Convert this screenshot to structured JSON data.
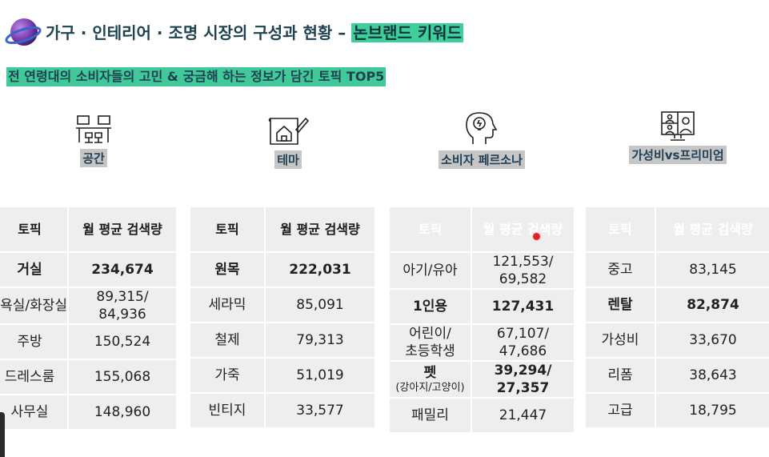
{
  "header": {
    "title_main": "가구 · 인테리어 · 조명 시장의 구성과 현황 – ",
    "title_highlight": "논브랜드 키워드",
    "subtitle": "전 연령대의 소비자들의 고민 & 궁금해 하는 정보가 담긴 토픽 TOP5"
  },
  "categories": [
    {
      "label": "공간",
      "icon": "office-desk-icon"
    },
    {
      "label": "테마",
      "icon": "house-blueprint-icon"
    },
    {
      "label": "소비자 페르소나",
      "icon": "head-idea-icon"
    },
    {
      "label": "가성비vs프리미엄",
      "icon": "video-meeting-icon"
    }
  ],
  "colors": {
    "title_highlight": "#3ecf9a",
    "table2_header": "#8fdf9a",
    "table3_header": "#3f8f2d",
    "table4_header": "#000000"
  },
  "tables": [
    {
      "header": [
        "토픽",
        "월 평균 검색량"
      ],
      "rows": [
        {
          "topic": "거실",
          "volume": "234,674",
          "bold": true
        },
        {
          "topic": "욕실/화장실",
          "volume": "89,315/\n84,936"
        },
        {
          "topic": "주방",
          "volume": "150,524"
        },
        {
          "topic": "드레스룸",
          "volume": "155,068"
        },
        {
          "topic": "사무실",
          "volume": "148,960"
        }
      ]
    },
    {
      "header": [
        "토픽",
        "월 평균 검색량"
      ],
      "rows": [
        {
          "topic": "원목",
          "volume": "222,031",
          "bold": true
        },
        {
          "topic": "세라믹",
          "volume": "85,091"
        },
        {
          "topic": "철제",
          "volume": "79,313"
        },
        {
          "topic": "가죽",
          "volume": "51,019"
        },
        {
          "topic": "빈티지",
          "volume": "33,577"
        }
      ]
    },
    {
      "header": [
        "토픽",
        "월 평균 검색량"
      ],
      "rows": [
        {
          "topic": "아기/유아",
          "volume": "121,553/\n69,582"
        },
        {
          "topic": "1인용",
          "volume": "127,431",
          "bold": true
        },
        {
          "topic": "어린이/\n초등학생",
          "volume": "67,107/\n47,686"
        },
        {
          "topic": "펫",
          "topic_sub": "(강아지/고양이)",
          "volume": "39,294/\n27,357",
          "bold": true
        },
        {
          "topic": "패밀리",
          "volume": "21,447"
        }
      ]
    },
    {
      "header": [
        "토픽",
        "월 평균 검색량"
      ],
      "rows": [
        {
          "topic": "중고",
          "volume": "83,145"
        },
        {
          "topic": "렌탈",
          "volume": "82,874",
          "bold": true
        },
        {
          "topic": "가성비",
          "volume": "33,670"
        },
        {
          "topic": "리폼",
          "volume": "38,643"
        },
        {
          "topic": "고급",
          "volume": "18,795"
        }
      ]
    }
  ]
}
